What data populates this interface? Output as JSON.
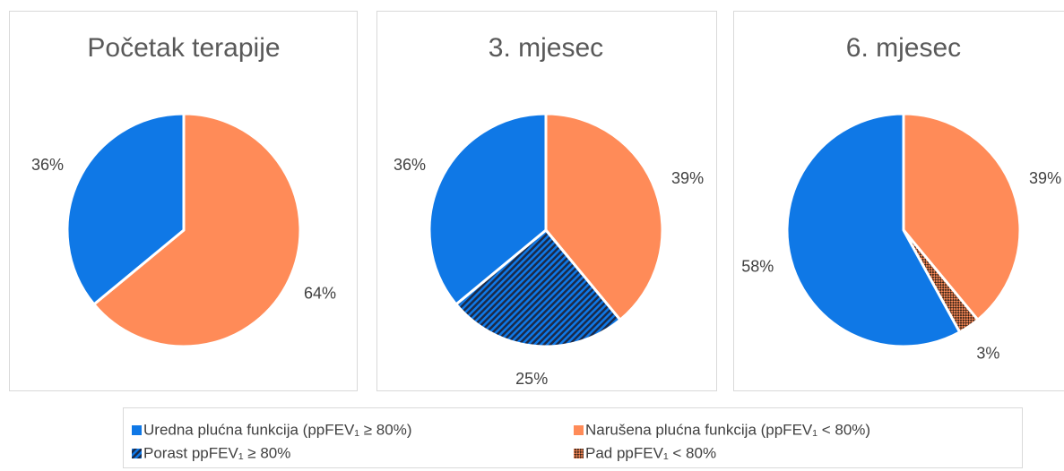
{
  "chart_data": [
    {
      "type": "pie",
      "title": "Početak terapije",
      "values": [
        64,
        36
      ],
      "value_labels": [
        "64%",
        "36%"
      ],
      "colors": [
        "#FF8B58",
        "#0F78E6"
      ],
      "hatches": [
        null,
        null
      ]
    },
    {
      "type": "pie",
      "title": "3. mjesec",
      "values": [
        39,
        25,
        36
      ],
      "value_labels": [
        "39%",
        "25%",
        "36%"
      ],
      "colors": [
        "#FF8B58",
        "#0F78E6",
        "#0F78E6"
      ],
      "hatches": [
        null,
        "dark-diagonal",
        null
      ]
    },
    {
      "type": "pie",
      "title": "6. mjesec",
      "values": [
        39,
        3,
        58
      ],
      "value_labels": [
        "39%",
        "3%",
        "58%"
      ],
      "colors": [
        "#FF8B58",
        "#FF8B58",
        "#0F78E6"
      ],
      "hatches": [
        null,
        "dark-checker",
        null
      ]
    }
  ],
  "legend": [
    {
      "name": "Uredna plućna funkcija (ppFEV₁  ≥ 80%)",
      "color": "#0F78E6",
      "hatch": null
    },
    {
      "name": "Narušena plućna funkcija (ppFEV₁  < 80%)",
      "color": "#FF8B58",
      "hatch": null
    },
    {
      "name": "Porast ppFEV₁ ≥ 80%",
      "color": "#0F78E6",
      "hatch": "dark-diagonal"
    },
    {
      "name": "Pad ppFEV₁  < 80%",
      "color": "#FF8B58",
      "hatch": "dark-checker"
    }
  ]
}
